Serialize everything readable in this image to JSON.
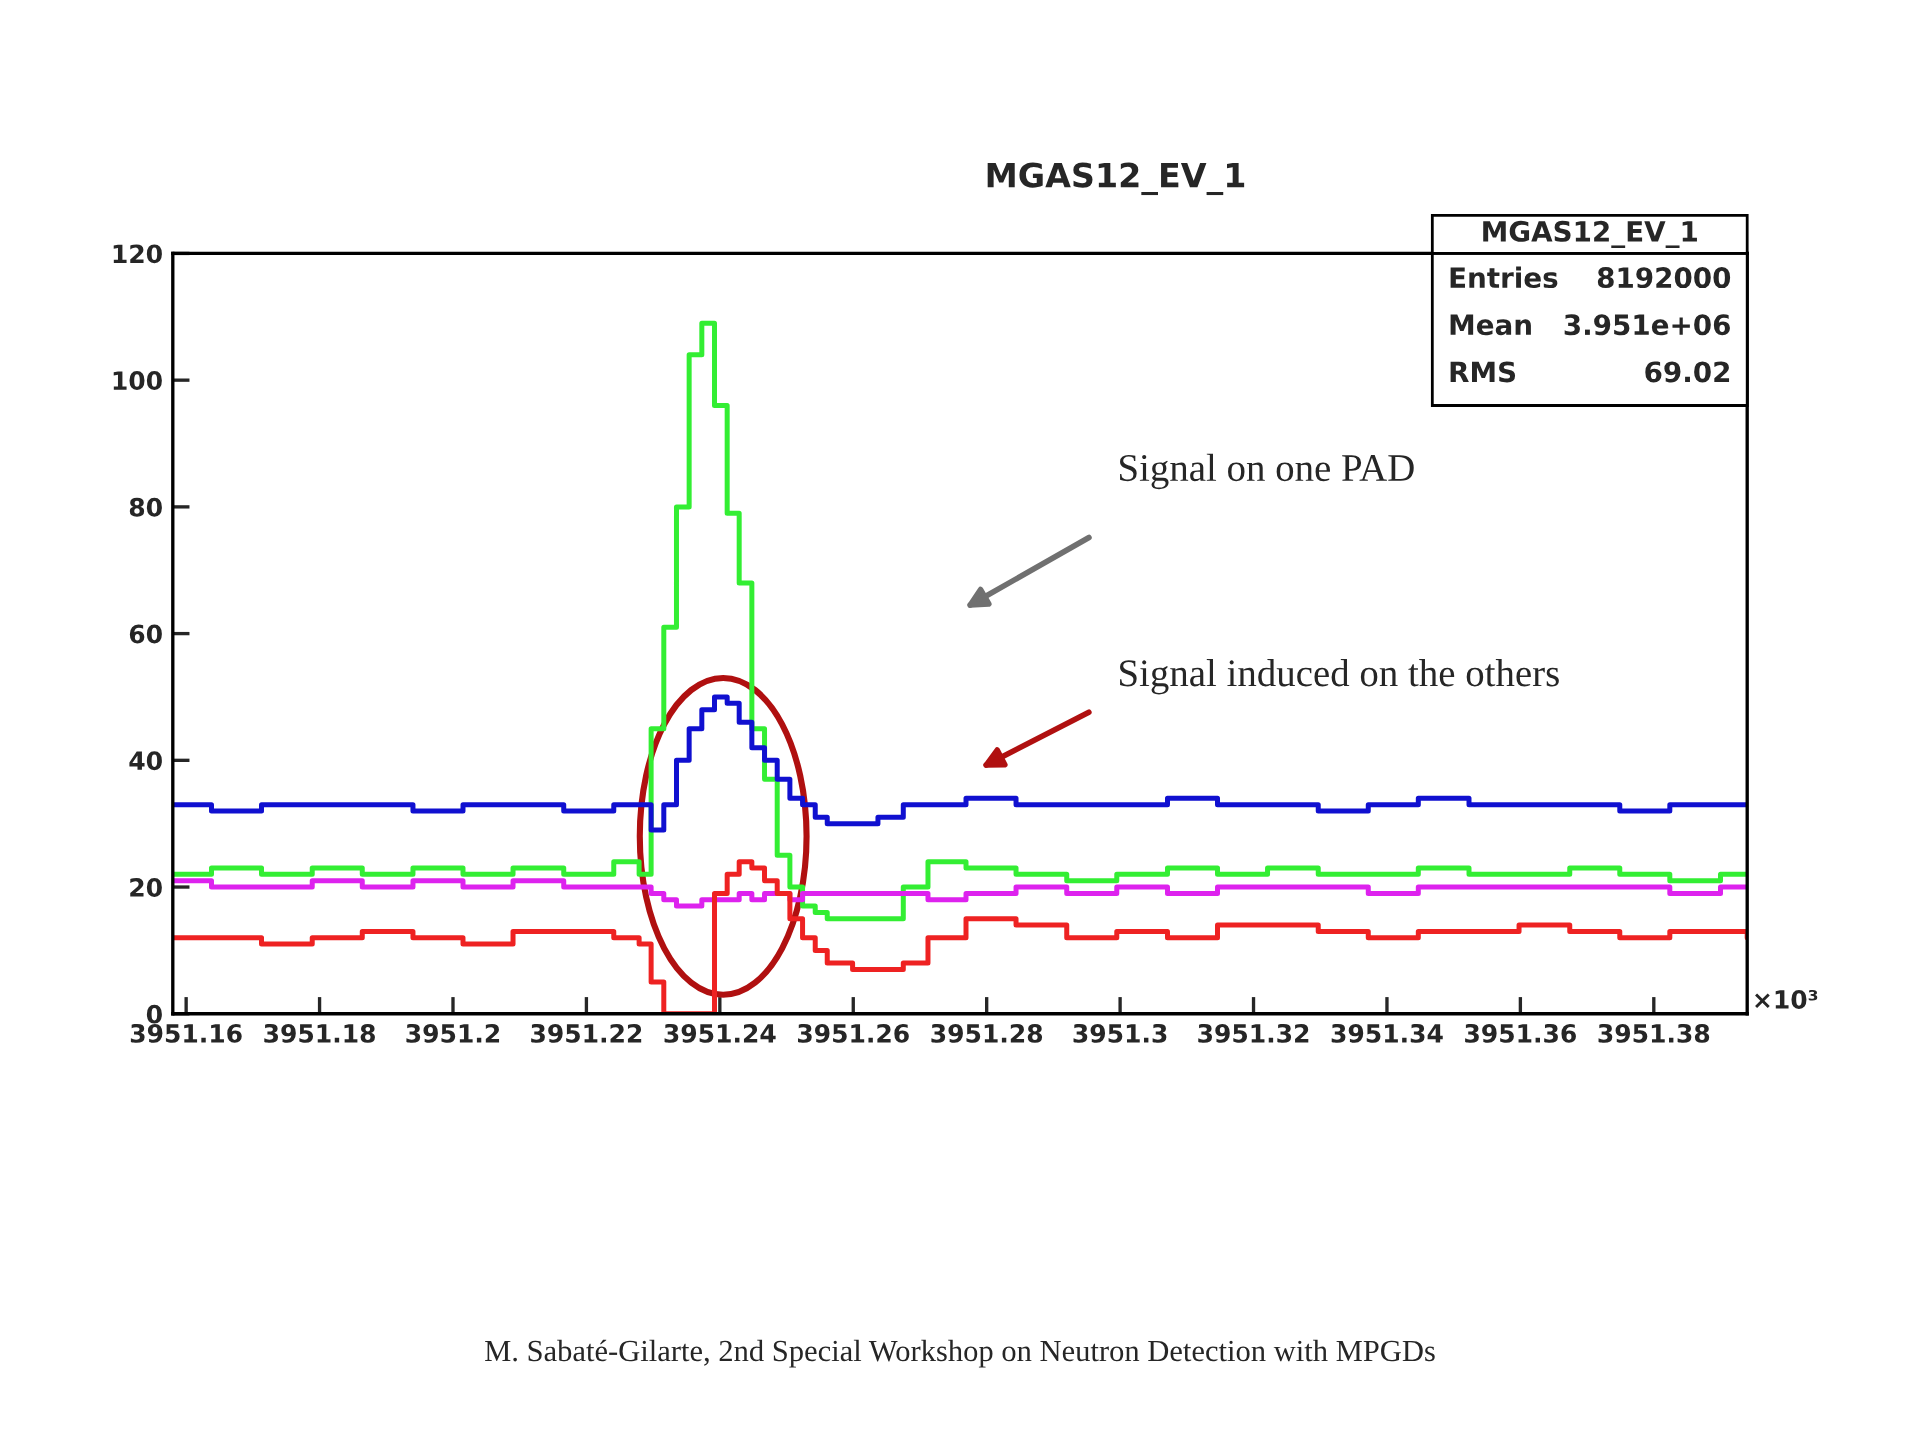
{
  "chart_data": {
    "type": "step",
    "title": "MGAS12_EV_1",
    "x": [
      3951.158,
      3951.1638,
      3951.1713,
      3951.1789,
      3951.1864,
      3951.194,
      3951.2015,
      3951.209,
      3951.2166,
      3951.2241,
      3951.2279,
      3951.2297,
      3951.2316,
      3951.2335,
      3951.2354,
      3951.2373,
      3951.2392,
      3951.2411,
      3951.2429,
      3951.2448,
      3951.2467,
      3951.2486,
      3951.2505,
      3951.2524,
      3951.2543,
      3951.2561,
      3951.2599,
      3951.2637,
      3951.2675,
      3951.2712,
      3951.2769,
      3951.2844,
      3951.292,
      3951.2995,
      3951.3071,
      3951.3146,
      3951.3221,
      3951.3297,
      3951.3372,
      3951.3447,
      3951.3523,
      3951.3598,
      3951.3674,
      3951.3749,
      3951.3824,
      3951.39,
      3951.394
    ],
    "series": [
      {
        "color": "#33ee33",
        "values": [
          22,
          23,
          22,
          23,
          22,
          23,
          22,
          23,
          22,
          24,
          22,
          45,
          61,
          80,
          104,
          109,
          96,
          79,
          68,
          45,
          37,
          25,
          20,
          17,
          16,
          15,
          15,
          15,
          20,
          24,
          23,
          22,
          21,
          22,
          23,
          22,
          23,
          22,
          22,
          23,
          22,
          22,
          23,
          22,
          21,
          22,
          22
        ]
      },
      {
        "color": "#1010d0",
        "values": [
          33,
          32,
          33,
          33,
          33,
          32,
          33,
          33,
          32,
          33,
          33,
          29,
          33,
          40,
          45,
          48,
          50,
          49,
          46,
          42,
          40,
          37,
          34,
          33,
          31,
          30,
          30,
          31,
          33,
          33,
          34,
          33,
          33,
          33,
          34,
          33,
          33,
          32,
          33,
          34,
          33,
          33,
          33,
          32,
          33,
          33,
          33
        ]
      },
      {
        "color": "#dd22ee",
        "values": [
          21,
          20,
          20,
          21,
          20,
          21,
          20,
          21,
          20,
          20,
          20,
          19,
          18,
          17,
          17,
          18,
          18,
          18,
          19,
          18,
          19,
          19,
          18,
          19,
          19,
          19,
          19,
          19,
          19,
          18,
          19,
          20,
          19,
          20,
          19,
          20,
          20,
          20,
          19,
          20,
          20,
          20,
          20,
          20,
          19,
          20,
          20
        ]
      },
      {
        "color": "#ee2222",
        "values": [
          12,
          12,
          11,
          12,
          13,
          12,
          11,
          13,
          13,
          12,
          11,
          5,
          0,
          0,
          0,
          0,
          19,
          22,
          24,
          23,
          21,
          19,
          15,
          12,
          10,
          8,
          7,
          7,
          8,
          12,
          15,
          14,
          12,
          13,
          12,
          14,
          14,
          13,
          12,
          13,
          13,
          14,
          13,
          12,
          13,
          13,
          12
        ]
      }
    ],
    "xlim": [
      3951.158,
      3951.394
    ],
    "xticks": [
      3951.16,
      3951.18,
      3951.2,
      3951.22,
      3951.24,
      3951.26,
      3951.28,
      3951.3,
      3951.32,
      3951.34,
      3951.36,
      3951.38
    ],
    "ylim": [
      0,
      120
    ],
    "yticks": [
      0,
      20,
      40,
      60,
      80,
      100,
      120
    ],
    "grid": false,
    "legend": false,
    "line_style": "solid",
    "annotations": [
      "Signal on one PAD",
      "Signal induced on the others",
      "MGAS12_EV_1",
      "Entries 8192000",
      "Mean 3.951e+06",
      "RMS 69.02",
      "×10³",
      "M. Sabaté-Gilarte, 2nd Special Workshop on Neutron Detection with MPGDs"
    ]
  }
}
